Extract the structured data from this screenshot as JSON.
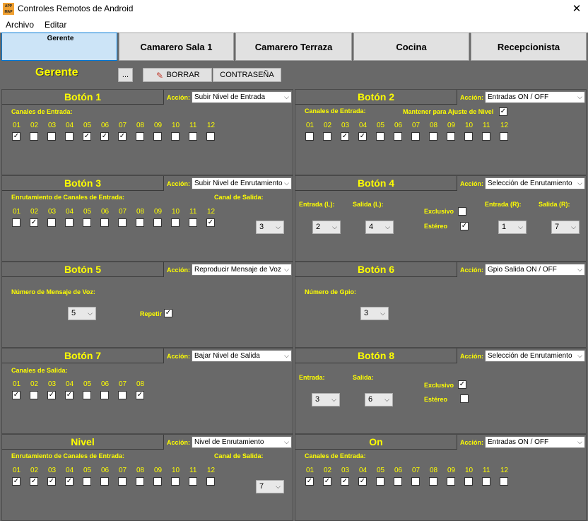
{
  "window": {
    "title": "Controles Remotos de Android",
    "app_icon_text": "APP MAP"
  },
  "menu": [
    "Archivo",
    "Editar"
  ],
  "tabs": [
    "Gerente",
    "Camarero Sala 1",
    "Camarero Terraza",
    "Cocina",
    "Recepcionista"
  ],
  "selected_tab": 0,
  "header": {
    "role": "Gerente",
    "more_label": "...",
    "delete_label": "BORRAR",
    "password_label": "CONTRASEÑA"
  },
  "accion_label": "Acción:",
  "panels": [
    {
      "title": "Botón 1",
      "action": "Subir Nivel de Entrada",
      "section": "Canales de Entrada:",
      "channels": [
        "01",
        "02",
        "03",
        "04",
        "05",
        "06",
        "07",
        "08",
        "09",
        "10",
        "11",
        "12"
      ],
      "checked": [
        true,
        false,
        false,
        false,
        true,
        true,
        true,
        false,
        false,
        false,
        false,
        false
      ]
    },
    {
      "title": "Botón 2",
      "action": "Entradas ON / OFF",
      "section": "Canales de Entrada:",
      "hold_label": "Mantener para Ajuste de Nivel",
      "hold_checked": true,
      "channels": [
        "01",
        "02",
        "03",
        "04",
        "05",
        "06",
        "07",
        "08",
        "09",
        "10",
        "11",
        "12"
      ],
      "checked": [
        false,
        false,
        true,
        true,
        false,
        false,
        false,
        false,
        false,
        false,
        false,
        false
      ]
    },
    {
      "title": "Botón 3",
      "action": "Subir Nivel de Enrutamiento",
      "section": "Enrutamiento de Canales de Entrada:",
      "out_label": "Canal de Salida:",
      "out_value": "3",
      "channels": [
        "01",
        "02",
        "03",
        "04",
        "05",
        "06",
        "07",
        "08",
        "09",
        "10",
        "11",
        "12"
      ],
      "checked": [
        false,
        true,
        false,
        false,
        false,
        false,
        false,
        false,
        false,
        false,
        false,
        true
      ]
    },
    {
      "title": "Botón 4",
      "action": "Selección de Enrutamiento",
      "in_l_label": "Entrada (L):",
      "in_l": "2",
      "out_l_label": "Salida (L):",
      "out_l": "4",
      "excl_label": "Exclusivo",
      "excl": false,
      "stereo_label": "Estéreo",
      "stereo": true,
      "in_r_label": "Entrada (R):",
      "in_r": "1",
      "out_r_label": "Salida (R):",
      "out_r": "7"
    },
    {
      "title": "Botón 5",
      "action": "Reproducir Mensaje de Voz",
      "section": "Número de Mensaje de Voz:",
      "value": "5",
      "repeat_label": "Repetir",
      "repeat": true
    },
    {
      "title": "Botón 6",
      "action": "Gpio Salida ON / OFF",
      "section": "Número de Gpio:",
      "value": "3"
    },
    {
      "title": "Botón 7",
      "action": "Bajar Nivel de Salida",
      "section": "Canales de Salida:",
      "channels": [
        "01",
        "02",
        "03",
        "04",
        "05",
        "06",
        "07",
        "08"
      ],
      "checked": [
        true,
        false,
        true,
        true,
        false,
        false,
        false,
        true
      ]
    },
    {
      "title": "Botón 8",
      "action": "Selección de Enrutamiento",
      "in_label": "Entrada:",
      "in": "3",
      "out_label": "Salida:",
      "out": "6",
      "excl_label": "Exclusivo",
      "excl": true,
      "stereo_label": "Estéreo",
      "stereo": false
    },
    {
      "title": "Nivel",
      "action": "Nivel de Enrutamiento",
      "section": "Enrutamiento de Canales de Entrada:",
      "out_label": "Canal de Salida:",
      "out_value": "7",
      "channels": [
        "01",
        "02",
        "03",
        "04",
        "05",
        "06",
        "07",
        "08",
        "09",
        "10",
        "11",
        "12"
      ],
      "checked": [
        true,
        true,
        true,
        true,
        false,
        false,
        false,
        false,
        false,
        false,
        false,
        false
      ]
    },
    {
      "title": "On",
      "action": "Entradas ON / OFF",
      "section": "Canales de Entrada:",
      "channels": [
        "01",
        "02",
        "03",
        "04",
        "05",
        "06",
        "07",
        "08",
        "09",
        "10",
        "11",
        "12"
      ],
      "checked": [
        true,
        true,
        true,
        true,
        false,
        false,
        false,
        false,
        false,
        false,
        false,
        false
      ]
    }
  ],
  "colors": {
    "panel_bg": "#696969",
    "label": "#ffff00",
    "tab_selected": "#cce4f7"
  }
}
